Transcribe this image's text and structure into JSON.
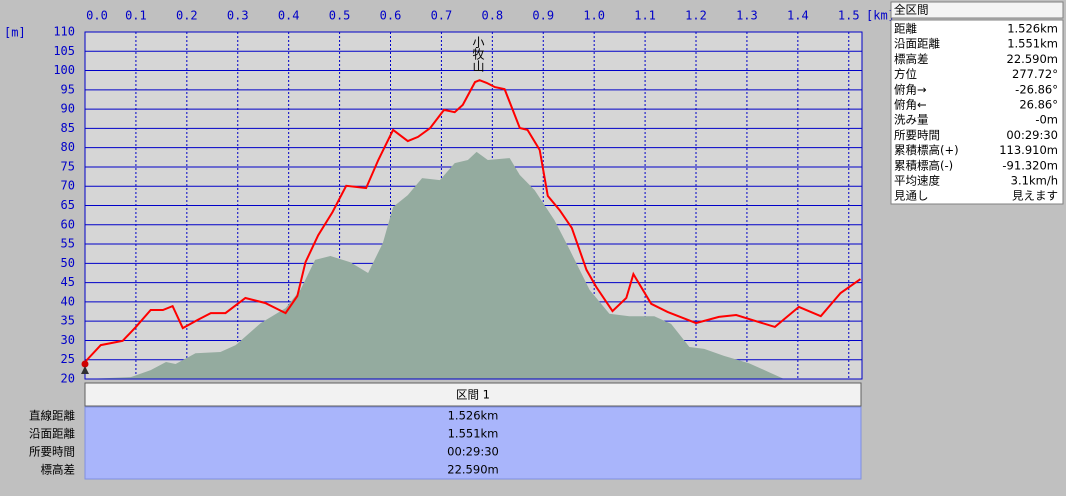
{
  "chart_data": {
    "type": "line",
    "x_unit": "[km]",
    "y_unit": "[m]",
    "annotation": "小牧山",
    "xlim": [
      0,
      1.526
    ],
    "ylim": [
      20,
      110
    ],
    "xticks": [
      {
        "value": 0,
        "label": "0.0"
      },
      0.1,
      0.2,
      0.3,
      0.4,
      0.5,
      0.6,
      0.7,
      0.8,
      0.9,
      {
        "value": 1,
        "label": "1.0"
      },
      1.1,
      1.2,
      1.3,
      1.4,
      1.5
    ],
    "yticks": [
      20,
      25,
      30,
      35,
      40,
      45,
      50,
      55,
      60,
      65,
      70,
      75,
      80,
      85,
      90,
      95,
      100,
      105,
      110
    ],
    "grid": true,
    "series": [
      {
        "color": "#94ab9f",
        "fill": true,
        "x": [
          0,
          0.09,
          0.129,
          0.159,
          0.178,
          0.217,
          0.266,
          0.296,
          0.345,
          0.394,
          0.423,
          0.452,
          0.482,
          0.521,
          0.556,
          0.585,
          0.605,
          0.634,
          0.662,
          0.697,
          0.726,
          0.752,
          0.769,
          0.791,
          0.834,
          0.854,
          0.883,
          0.922,
          0.952,
          0.991,
          1.03,
          1.069,
          1.118,
          1.151,
          1.187,
          1.216,
          1.255,
          1.304,
          1.343,
          1.373,
          1.523
        ],
        "values": [
          20,
          20.5,
          22.3,
          24.4,
          23.9,
          26.7,
          27,
          28.8,
          34.5,
          38.4,
          43.1,
          50.9,
          51.9,
          50.3,
          47.5,
          55.3,
          64.6,
          67.7,
          72.1,
          71.6,
          76,
          76.8,
          78.9,
          76.8,
          77.3,
          72.9,
          69,
          61.2,
          53.5,
          43.1,
          36.9,
          36.3,
          36.3,
          34.3,
          28.3,
          27.8,
          26,
          24.1,
          21.8,
          20,
          20
        ]
      },
      {
        "color": "#ff0000",
        "fill": false,
        "x": [
          0,
          0.031,
          0.074,
          0.1,
          0.129,
          0.153,
          0.172,
          0.192,
          0.221,
          0.247,
          0.276,
          0.315,
          0.354,
          0.394,
          0.417,
          0.433,
          0.458,
          0.486,
          0.513,
          0.552,
          0.576,
          0.605,
          0.634,
          0.654,
          0.678,
          0.705,
          0.726,
          0.742,
          0.766,
          0.775,
          0.789,
          0.805,
          0.824,
          0.854,
          0.869,
          0.893,
          0.909,
          0.932,
          0.956,
          0.985,
          1.004,
          1.036,
          1.063,
          1.077,
          1.112,
          1.144,
          1.2,
          1.245,
          1.279,
          1.318,
          1.355,
          1.402,
          1.445,
          1.484,
          1.523
        ],
        "values": [
          24.4,
          28.8,
          29.9,
          33.5,
          37.9,
          37.9,
          38.9,
          33.2,
          35.3,
          37.1,
          37.1,
          41,
          39.7,
          37.1,
          41.5,
          50.3,
          57.3,
          63.3,
          70.1,
          69.5,
          76.8,
          84.6,
          81.7,
          82.8,
          85.1,
          89.8,
          89.2,
          91.1,
          97,
          97.5,
          96.8,
          95.7,
          95.2,
          85.1,
          84.6,
          79.4,
          67.5,
          63.8,
          59.2,
          48.3,
          43.9,
          37.6,
          41,
          47.2,
          39.5,
          37.4,
          34.5,
          36.1,
          36.6,
          35,
          33.5,
          38.7,
          36.3,
          42.3,
          45.9
        ]
      }
    ]
  },
  "info_panel": {
    "title": "全区間",
    "rows": [
      [
        "距離",
        "1.526km"
      ],
      [
        "沿面距離",
        "1.551km"
      ],
      [
        "標高差",
        "22.590m"
      ],
      [
        "方位",
        "277.72°"
      ],
      [
        "俯角→",
        "-26.86°"
      ],
      [
        "俯角←",
        "26.86°"
      ],
      [
        "洗み量",
        "-0m"
      ],
      [
        "所要時間",
        "00:29:30"
      ],
      [
        "累積標高(+)",
        "113.910m"
      ],
      [
        "累積標高(-)",
        "-91.320m"
      ],
      [
        "平均速度",
        "3.1km/h"
      ],
      [
        "見通し",
        "見えます"
      ]
    ]
  },
  "section_table": {
    "header": "区間 1",
    "rows": [
      [
        "直線距離",
        "1.526km"
      ],
      [
        "沿面距離",
        "1.551km"
      ],
      [
        "所要時間",
        "00:29:30"
      ],
      [
        "標高差",
        "22.590m"
      ]
    ]
  }
}
